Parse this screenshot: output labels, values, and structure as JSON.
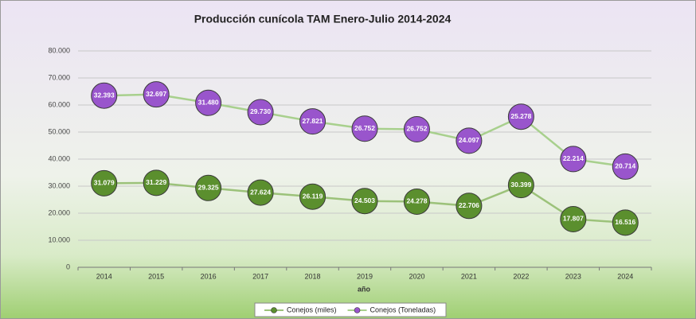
{
  "chart_data": {
    "type": "line",
    "stacked": true,
    "title": "Producción cunícola TAM Enero-Julio 2014-2024",
    "x_label": "año",
    "categories": [
      "2014",
      "2015",
      "2016",
      "2017",
      "2018",
      "2019",
      "2020",
      "2021",
      "2022",
      "2023",
      "2024"
    ],
    "series": [
      {
        "name": "Conejos (miles)",
        "color": "#5b8f2e",
        "line_color": "#9cc27a",
        "values": [
          31079,
          31229,
          29325,
          27624,
          26119,
          24503,
          24278,
          22706,
          30399,
          17807,
          16516
        ],
        "value_labels": [
          "31.079",
          "31.229",
          "29.325",
          "27.624",
          "26.119",
          "24.503",
          "24.278",
          "22.706",
          "30.399",
          "17.807",
          "16.516"
        ]
      },
      {
        "name": "Conejos (Toneladas)",
        "color": "#9955cc",
        "line_color": "#a8d08d",
        "values": [
          32393,
          32697,
          31480,
          29730,
          27821,
          26752,
          26752,
          24097,
          25278,
          22214,
          20714
        ],
        "value_labels": [
          "32.393",
          "32.697",
          "31.480",
          "29.730",
          "27.821",
          "26.752",
          "26.752",
          "24.097",
          "25.278",
          "22.214",
          "20.714"
        ]
      }
    ],
    "ylim": [
      0,
      80000
    ],
    "yticks": [
      0,
      {
        "value": 10000,
        "label": "10.000"
      },
      {
        "value": 20000,
        "label": "20.000"
      },
      {
        "value": 30000,
        "label": "30.000"
      },
      {
        "value": 40000,
        "label": "40.000"
      },
      {
        "value": 50000,
        "label": "50.000"
      },
      {
        "value": 60000,
        "label": "60.000"
      },
      {
        "value": 70000,
        "label": "70.000"
      },
      {
        "value": 80000,
        "label": "80.000"
      }
    ],
    "grid": true,
    "legend": "bottom"
  }
}
